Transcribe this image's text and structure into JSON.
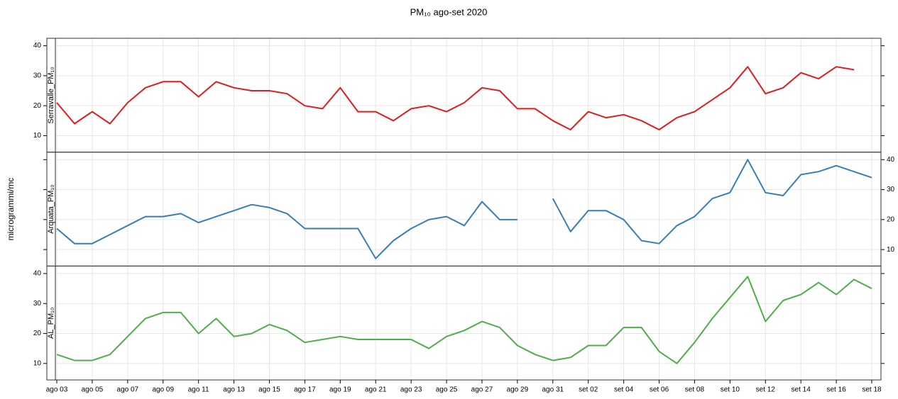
{
  "chart_data": {
    "type": "line",
    "title": "PM₁₀ ago-set 2020",
    "y_label": "microgrammi/mc",
    "categories": [
      "ago 03",
      null,
      "ago 05",
      null,
      "ago 07",
      null,
      "ago 09",
      null,
      "ago 11",
      null,
      "ago 13",
      null,
      "ago 15",
      null,
      "ago 17",
      null,
      "ago 19",
      null,
      "ago 21",
      null,
      "ago 23",
      null,
      "ago 25",
      null,
      "ago 27",
      null,
      "ago 29",
      null,
      "ago 31",
      null,
      "set 02",
      null,
      "set 04",
      null,
      "set 06",
      null,
      "set 08",
      null,
      "set 10",
      null,
      "set 12",
      null,
      "set 14",
      null,
      "set 16",
      null,
      "set 18"
    ],
    "ylim": [
      4.5,
      42.5
    ],
    "yticks": [
      10,
      20,
      30,
      40
    ],
    "grid": true,
    "ytick_sides": [
      "left",
      "right",
      "left"
    ],
    "series": [
      {
        "name": "Serravalle_PM₁₀",
        "color": "#e41a1c",
        "values": [
          21,
          14,
          18,
          14,
          21,
          26,
          28,
          28,
          23,
          28,
          26,
          25,
          25,
          24,
          20,
          19,
          26,
          18,
          18,
          15,
          19,
          20,
          18,
          21,
          26,
          25,
          19,
          19,
          15,
          12,
          18,
          16,
          17,
          15,
          12,
          16,
          18,
          22,
          26,
          33,
          24,
          26,
          31,
          29,
          33,
          32,
          null
        ]
      },
      {
        "name": "Arquata_PM₁₀",
        "color": "#377eb8",
        "values": [
          17,
          12,
          12,
          15,
          18,
          21,
          21,
          22,
          19,
          21,
          23,
          25,
          24,
          22,
          17,
          17,
          17,
          17,
          7,
          13,
          17,
          20,
          21,
          18,
          26,
          20,
          20,
          null,
          27,
          16,
          23,
          23,
          20,
          13,
          12,
          18,
          21,
          27,
          29,
          40,
          29,
          28,
          35,
          36,
          38,
          36,
          34
        ]
      },
      {
        "name": "AL_PM₁₀",
        "color": "#4daf4a",
        "values": [
          13,
          11,
          11,
          13,
          19,
          25,
          27,
          27,
          20,
          25,
          19,
          20,
          23,
          21,
          17,
          18,
          19,
          18,
          18,
          18,
          18,
          15,
          19,
          21,
          24,
          22,
          16,
          13,
          11,
          12,
          16,
          16,
          22,
          22,
          14,
          10,
          17,
          25,
          32,
          39,
          24,
          31,
          33,
          37,
          33,
          38,
          35
        ]
      }
    ]
  }
}
